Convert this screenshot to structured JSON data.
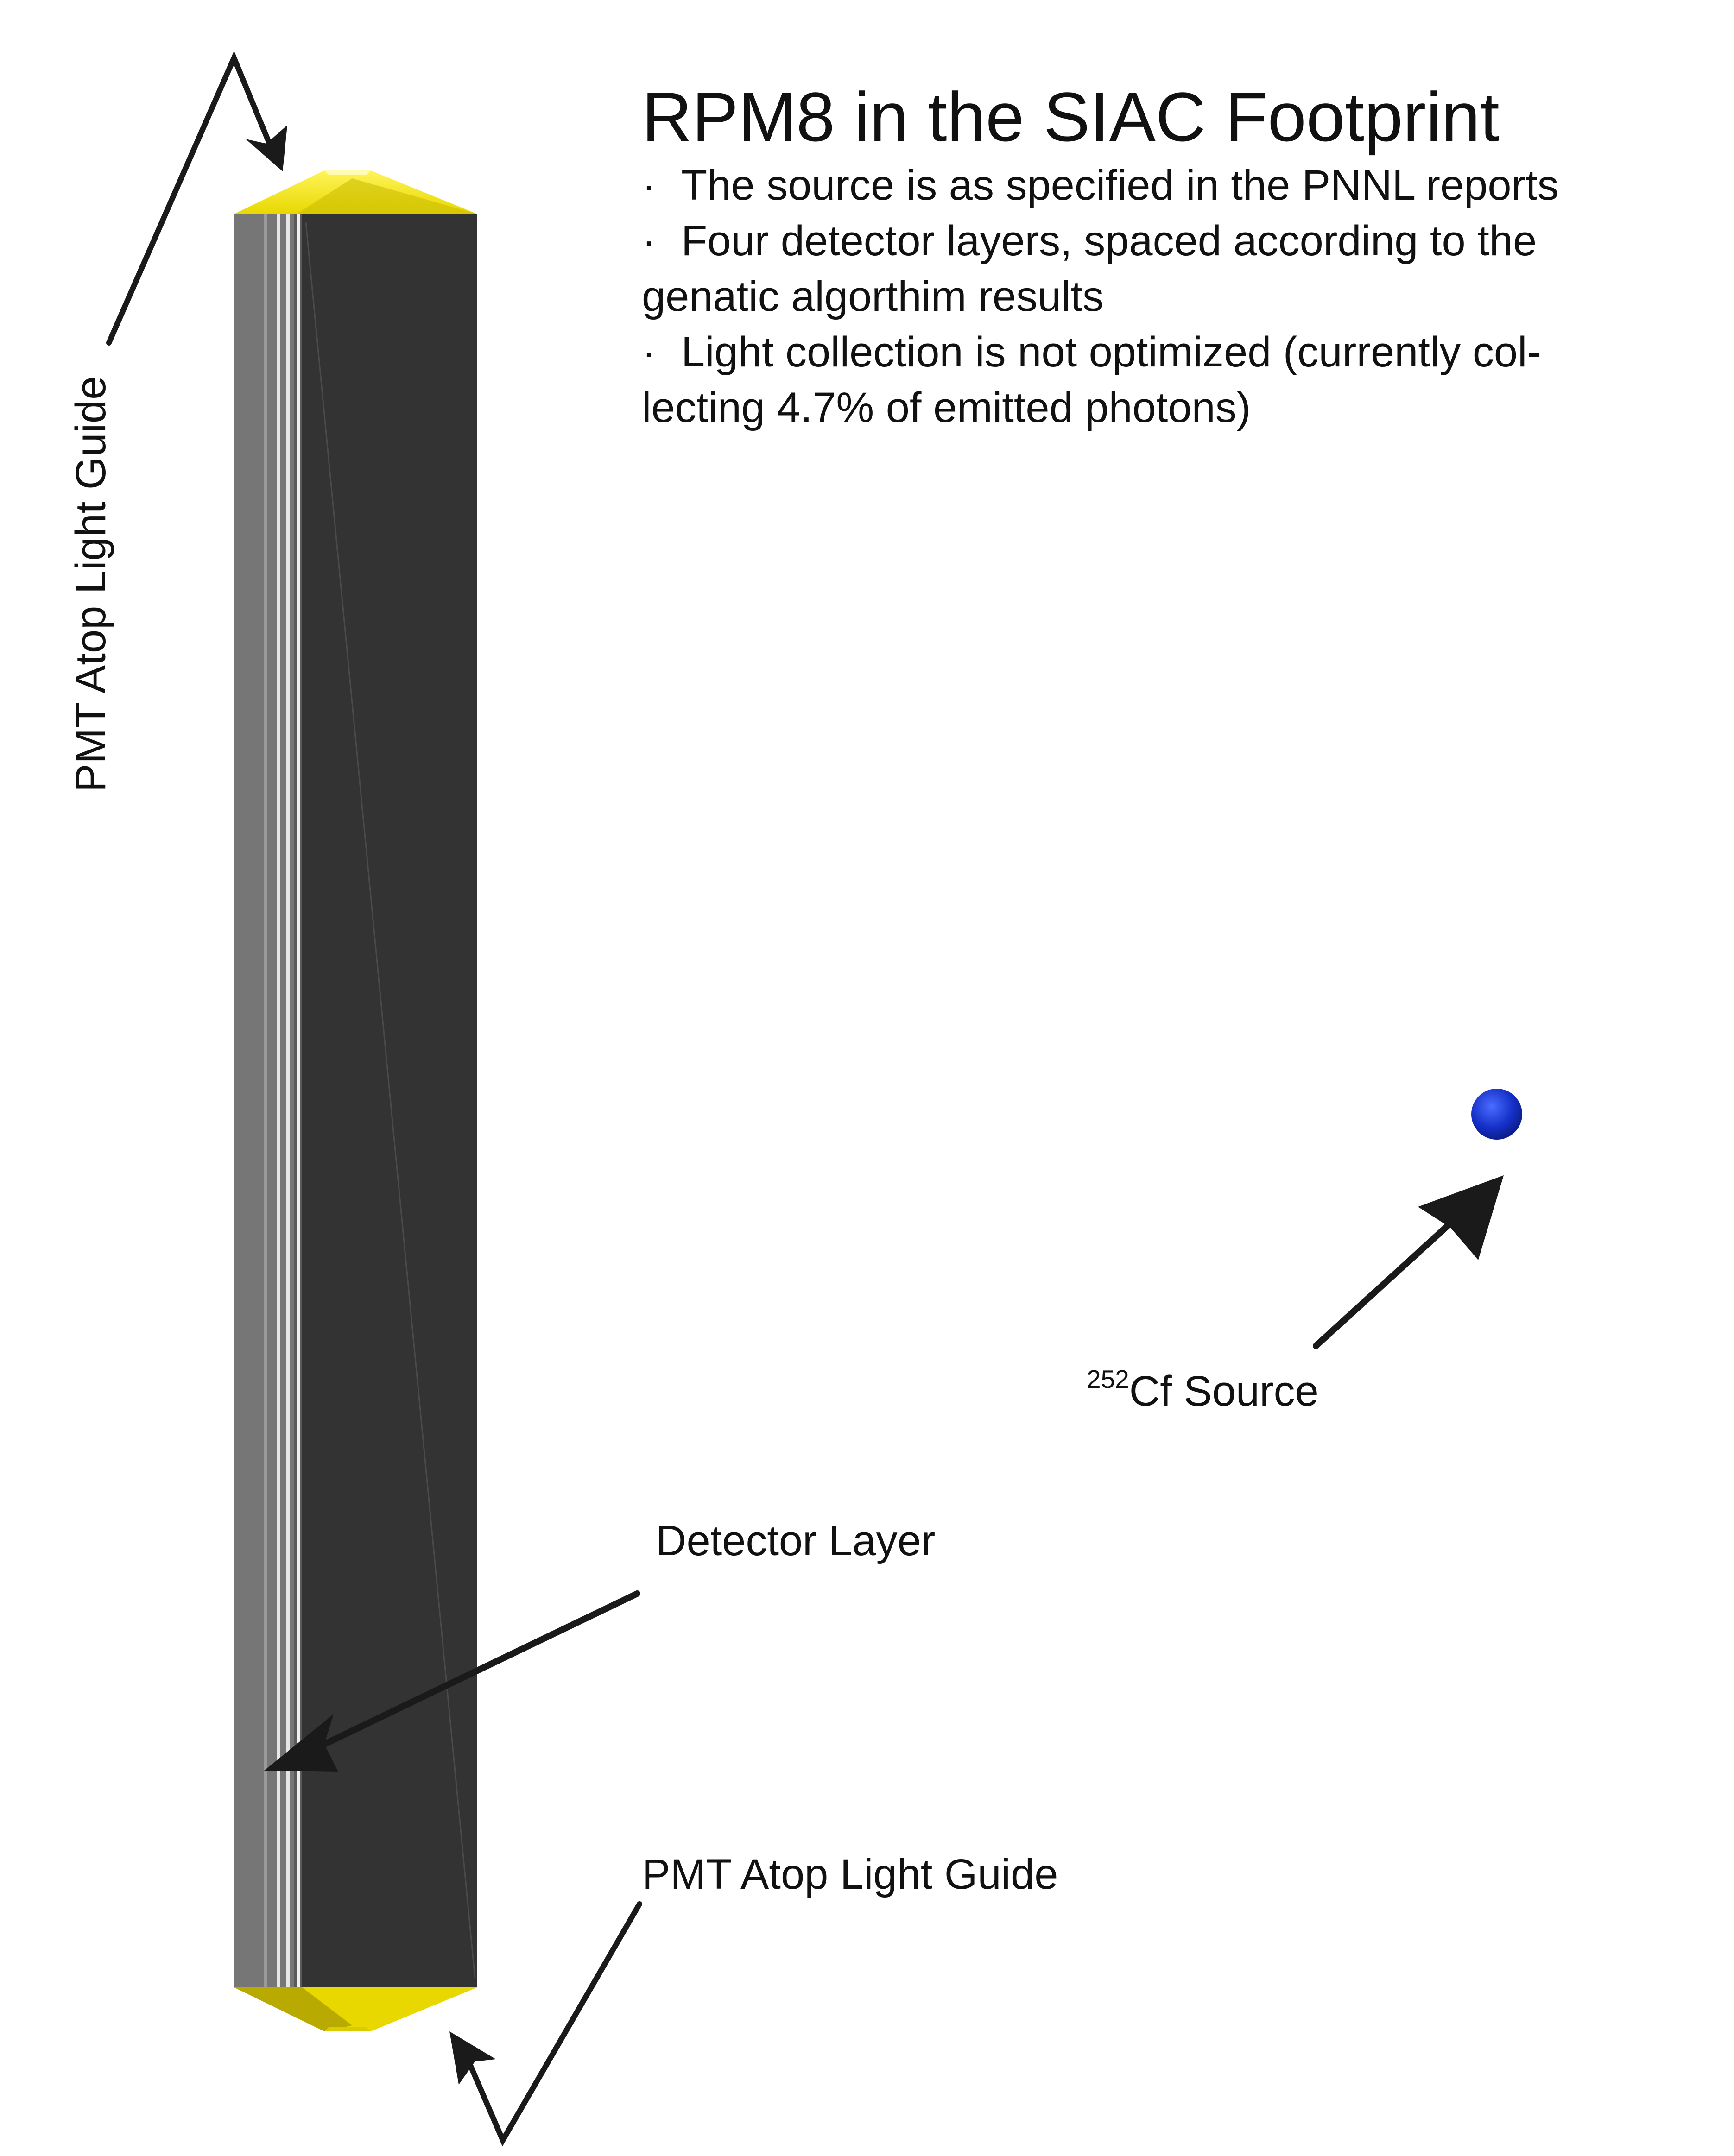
{
  "title": "RPM8 in the SIAC Footprint",
  "bullets": [
    "The source is as specified in the PNNL reports",
    "Four detector layers, spaced according to the genatic algorthim results",
    "Light collection is not optimized (currently col-lecting 4.7% of emitted photons)"
  ],
  "bullet_symbol": "·",
  "labels": {
    "pmt_top": "PMT Atop Light Guide",
    "pmt_bottom": "PMT Atop Light Guide",
    "detector_layer": "Detector Layer",
    "source_isotope_mass": "252",
    "source_text": "Cf Source"
  },
  "colors": {
    "detector_body": "#333333",
    "detector_side": "#777777",
    "layer_lines": "#e6e6e6",
    "light_guide": "#f2e600",
    "light_guide_shade": "#9a9000",
    "source": "#1530c8",
    "arrow": "#1a1a1a"
  }
}
